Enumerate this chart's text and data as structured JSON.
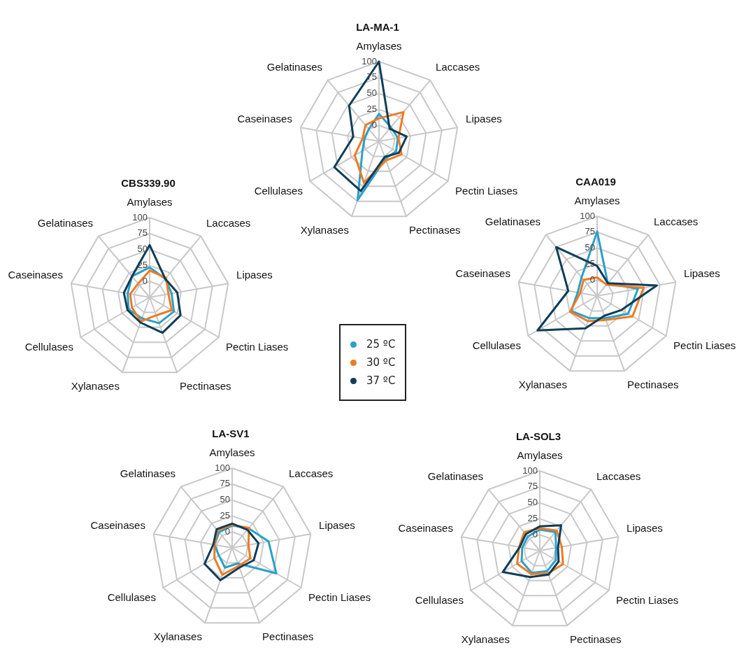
{
  "chart_data": [
    {
      "type": "radar",
      "title": "LA-MA-1",
      "categories": [
        "Amylases",
        "Laccases",
        "Lipases",
        "Pectin Liases",
        "Pectinases",
        "Xylanases",
        "Cellulases",
        "Caseinases",
        "Gelatinases"
      ],
      "ylim": [
        -25,
        100
      ],
      "yticks": [
        0,
        25,
        50,
        75,
        100
      ],
      "grid": true,
      "marker": "none",
      "legend": "bottom",
      "series": [
        {
          "name": "25 ºC",
          "color": "#2aa0c8",
          "values": [
            18,
            4,
            5,
            6,
            4,
            73,
            5,
            -2,
            0
          ]
        },
        {
          "name": "30 ºC",
          "color": "#f07a22",
          "values": [
            11,
            35,
            6,
            16,
            7,
            44,
            19,
            1,
            8
          ]
        },
        {
          "name": "37 ºC",
          "color": "#0f3d57",
          "values": [
            100,
            1,
            19,
            11,
            1,
            58,
            56,
            16,
            48
          ]
        }
      ]
    },
    {
      "type": "radar",
      "title": "CBS339.90",
      "categories": [
        "Amylases",
        "Laccases",
        "Lipases",
        "Pectin Liases",
        "Pectinases",
        "Xylanases",
        "Cellulases",
        "Caseinases",
        "Gelatinases"
      ],
      "ylim": [
        -25,
        100
      ],
      "yticks": [
        0,
        25,
        50,
        75,
        100
      ],
      "grid": true,
      "marker": "none",
      "legend": false,
      "series": [
        {
          "name": "25 ºC",
          "color": "#2aa0c8",
          "values": [
            22,
            13,
            10,
            19,
            18,
            10,
            13,
            10,
            18
          ]
        },
        {
          "name": "30 ºC",
          "color": "#f07a22",
          "values": [
            17,
            15,
            5,
            15,
            5,
            15,
            7,
            6,
            3
          ]
        },
        {
          "name": "37 ºC",
          "color": "#0f3d57",
          "values": [
            57,
            13,
            19,
            31,
            34,
            17,
            15,
            16,
            18
          ]
        }
      ]
    },
    {
      "type": "radar",
      "title": "CAA019",
      "categories": [
        "Amylases",
        "Laccases",
        "Lipases",
        "Pectin Liases",
        "Pectinases",
        "Xylanases",
        "Cellulases",
        "Caseinases",
        "Gelatinases"
      ],
      "ylim": [
        -25,
        100
      ],
      "yticks": [
        0,
        25,
        50,
        75,
        100
      ],
      "grid": true,
      "marker": "none",
      "legend": false,
      "series": [
        {
          "name": "25 ºC",
          "color": "#2aa0c8",
          "values": [
            76,
            1,
            40,
            31,
            12,
            12,
            22,
            6,
            13
          ]
        },
        {
          "name": "30 ºC",
          "color": "#f07a22",
          "values": [
            4,
            -2,
            49,
            39,
            15,
            17,
            24,
            2,
            8
          ]
        },
        {
          "name": "37 ºC",
          "color": "#0f3d57",
          "values": [
            22,
            1,
            70,
            19,
            8,
            29,
            83,
            21,
            75
          ]
        }
      ]
    },
    {
      "type": "radar",
      "title": "LA-SV1",
      "categories": [
        "Amylases",
        "Laccases",
        "Lipases",
        "Pectin Liases",
        "Pectinases",
        "Xylanases",
        "Cellulases",
        "Caseinases",
        "Gelatinases"
      ],
      "ylim": [
        -25,
        100
      ],
      "yticks": [
        0,
        25,
        50,
        75,
        100
      ],
      "grid": true,
      "marker": "none",
      "legend": false,
      "series": [
        {
          "name": "25 ºC",
          "color": "#2aa0c8",
          "values": [
            10,
            15,
            33,
            55,
            1,
            8,
            -1,
            3,
            7
          ]
        },
        {
          "name": "30 ºC",
          "color": "#f07a22",
          "values": [
            11,
            16,
            1,
            8,
            5,
            20,
            7,
            3,
            11
          ]
        },
        {
          "name": "37 ºC",
          "color": "#0f3d57",
          "values": [
            13,
            12,
            17,
            14,
            8,
            29,
            25,
            5,
            13
          ]
        }
      ]
    },
    {
      "type": "radar",
      "title": "LA-SOL3",
      "categories": [
        "Amylases",
        "Laccases",
        "Lipases",
        "Pectin Liases",
        "Pectinases",
        "Xylanases",
        "Cellulases",
        "Caseinases",
        "Gelatinases"
      ],
      "ylim": [
        -25,
        100
      ],
      "yticks": [
        0,
        25,
        50,
        75,
        100
      ],
      "grid": true,
      "marker": "none",
      "legend": false,
      "series": [
        {
          "name": "25 ºC",
          "color": "#2aa0c8",
          "values": [
            8,
            13,
            1,
            4,
            9,
            12,
            8,
            3,
            4
          ]
        },
        {
          "name": "30 ºC",
          "color": "#f07a22",
          "values": [
            10,
            16,
            10,
            17,
            13,
            14,
            16,
            8,
            13
          ]
        },
        {
          "name": "37 ºC",
          "color": "#0f3d57",
          "values": [
            13,
            27,
            4,
            9,
            15,
            19,
            42,
            7,
            9
          ]
        }
      ]
    }
  ]
}
